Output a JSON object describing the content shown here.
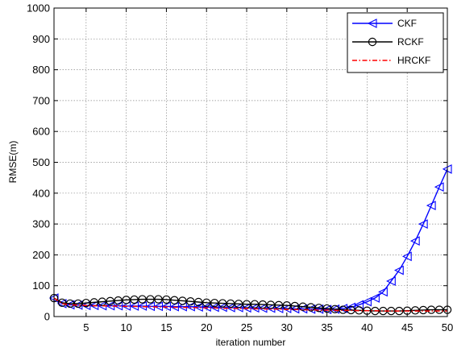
{
  "chart_data": {
    "type": "line",
    "xlabel": "iteration number",
    "ylabel": "RMSE(m)",
    "xlim": [
      1,
      50
    ],
    "ylim": [
      0,
      1000
    ],
    "xticks": [
      5,
      10,
      15,
      20,
      25,
      30,
      35,
      40,
      45,
      50
    ],
    "yticks": [
      0,
      100,
      200,
      300,
      400,
      500,
      600,
      700,
      800,
      900,
      1000
    ],
    "grid": true,
    "legend_position": "top-right",
    "x": [
      1,
      2,
      3,
      4,
      5,
      6,
      7,
      8,
      9,
      10,
      11,
      12,
      13,
      14,
      15,
      16,
      17,
      18,
      19,
      20,
      21,
      22,
      23,
      24,
      25,
      26,
      27,
      28,
      29,
      30,
      31,
      32,
      33,
      34,
      35,
      36,
      37,
      38,
      39,
      40,
      41,
      42,
      43,
      44,
      45,
      46,
      47,
      48,
      49,
      50
    ],
    "series": [
      {
        "name": "CKF",
        "color": "#0000ff",
        "marker": "triangle-left",
        "line_style": "solid",
        "values": [
          60,
          42,
          38,
          37,
          36,
          36,
          35,
          35,
          35,
          34,
          34,
          34,
          33,
          33,
          33,
          32,
          32,
          32,
          31,
          31,
          30,
          30,
          29,
          29,
          28,
          28,
          27,
          27,
          26,
          26,
          25,
          25,
          24,
          24,
          23,
          24,
          26,
          30,
          38,
          48,
          60,
          80,
          115,
          150,
          195,
          245,
          300,
          360,
          420,
          478
        ]
      },
      {
        "name": "RCKF",
        "color": "#000000",
        "marker": "circle",
        "line_style": "solid",
        "values": [
          60,
          45,
          42,
          42,
          44,
          46,
          48,
          50,
          52,
          54,
          55,
          56,
          56,
          56,
          55,
          53,
          51,
          49,
          47,
          45,
          44,
          43,
          42,
          41,
          40,
          40,
          39,
          38,
          37,
          36,
          34,
          32,
          30,
          28,
          26,
          24,
          22,
          21,
          20,
          19,
          18,
          18,
          18,
          18,
          19,
          20,
          21,
          22,
          22,
          22
        ]
      },
      {
        "name": "HRCKF",
        "color": "#ff0000",
        "marker": "none",
        "line_style": "dash-dot",
        "values": [
          60,
          42,
          38,
          37,
          36,
          35,
          35,
          34,
          34,
          33,
          33,
          32,
          32,
          31,
          31,
          30,
          30,
          29,
          29,
          28,
          28,
          27,
          27,
          26,
          26,
          25,
          25,
          24,
          24,
          23,
          23,
          22,
          22,
          21,
          21,
          20,
          20,
          20,
          19,
          19,
          19,
          18,
          18,
          18,
          18,
          18,
          18,
          18,
          18,
          18
        ]
      }
    ]
  }
}
